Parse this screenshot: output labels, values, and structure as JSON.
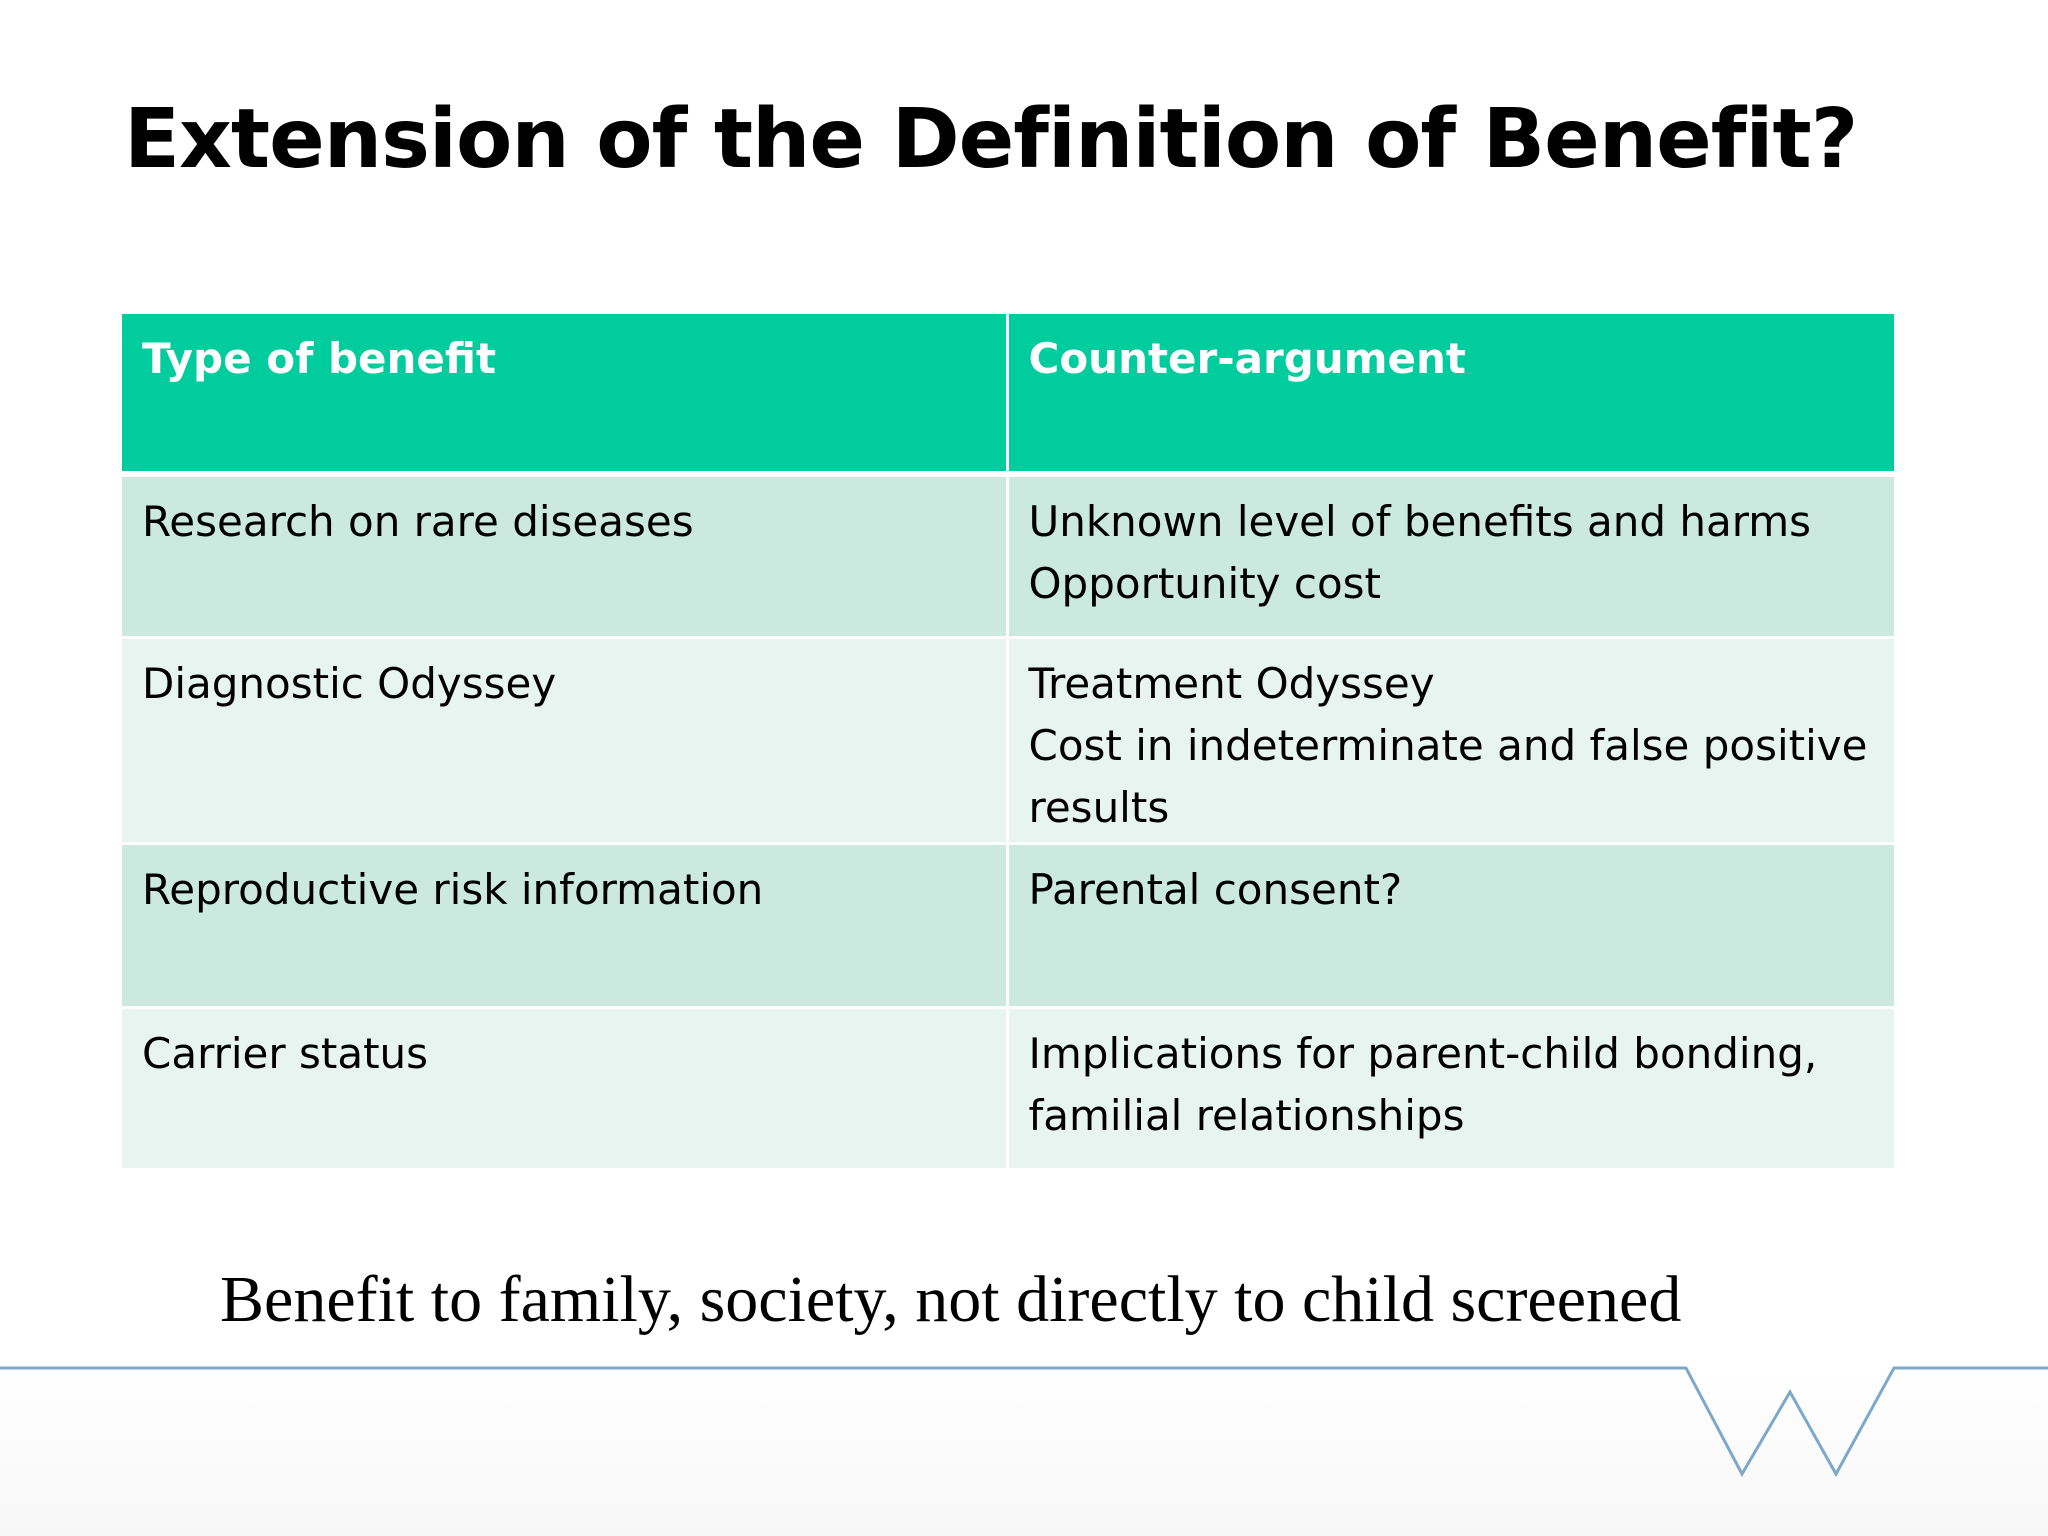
{
  "slide": {
    "title": "Extension of the Definition of Benefit?",
    "footnote": "Benefit to family, society, not directly to child screened"
  },
  "table": {
    "headers": [
      "Type of benefit",
      "Counter-argument"
    ],
    "rows": [
      {
        "type": "Research on rare diseases",
        "counter": [
          "Unknown level of benefits and harms",
          "Opportunity cost"
        ]
      },
      {
        "type": "Diagnostic Odyssey",
        "counter": [
          "Treatment Odyssey",
          "Cost in indeterminate and false positive results"
        ]
      },
      {
        "type": "Reproductive risk information",
        "counter": [
          "Parental consent?"
        ]
      },
      {
        "type": "Carrier status",
        "counter": [
          "Implications for parent-child bonding, familial relationships"
        ]
      }
    ]
  },
  "colors": {
    "header_fill": "#00cc9e",
    "row_band_dark": "#cce9df",
    "row_band_light": "#e7f4ef",
    "footer_line": "#7ca9c9"
  },
  "icons": {
    "footer": "w-logo-line"
  }
}
